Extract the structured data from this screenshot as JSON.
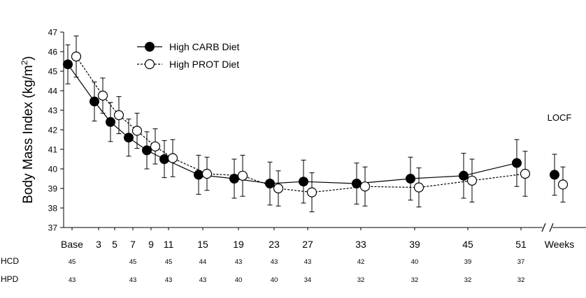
{
  "chart_data": {
    "type": "line",
    "ylabel": "Body Mass Index (kg/m",
    "ylabel_sup": "2",
    "ylabel_close": ")",
    "xlabel": "Weeks",
    "ylim": [
      37,
      47
    ],
    "yticks": [
      37,
      38,
      39,
      40,
      41,
      42,
      43,
      44,
      45,
      46,
      47
    ],
    "x_tick_labels": [
      "Base",
      "3",
      "5",
      "7",
      "9",
      "11",
      "15",
      "19",
      "23",
      "27",
      "33",
      "39",
      "45",
      "51"
    ],
    "x_tick_weeks": [
      0,
      3,
      5,
      7,
      9,
      11,
      15,
      19,
      23,
      27,
      33,
      39,
      45,
      51
    ],
    "legend_position": "top-left",
    "locf_label": "LOCF",
    "series": [
      {
        "name": "High CARB Diet",
        "marker": "filled-circle",
        "line_style": "solid",
        "x": [
          0,
          3,
          5,
          7,
          9,
          11,
          15,
          19,
          23,
          27,
          33,
          39,
          45,
          51
        ],
        "values": [
          45.35,
          43.45,
          42.4,
          41.6,
          40.95,
          40.5,
          39.7,
          39.5,
          39.25,
          39.35,
          39.25,
          39.5,
          39.65,
          40.3
        ],
        "err": [
          1.0,
          1.0,
          1.0,
          0.95,
          0.95,
          0.95,
          1.0,
          1.0,
          1.1,
          1.1,
          1.05,
          1.1,
          1.15,
          1.2
        ],
        "locf_value": 39.7,
        "locf_err": 1.05
      },
      {
        "name": "High PROT Diet",
        "marker": "open-circle",
        "line_style": "dashed",
        "x": [
          0,
          3,
          5,
          7,
          9,
          11,
          15,
          19,
          23,
          27,
          33,
          39,
          45,
          51
        ],
        "values": [
          45.75,
          43.75,
          42.75,
          41.95,
          41.15,
          40.55,
          39.75,
          39.65,
          39.0,
          38.8,
          39.1,
          39.05,
          39.4,
          39.75
        ],
        "err": [
          1.05,
          0.9,
          0.95,
          0.9,
          0.9,
          0.95,
          0.85,
          1.05,
          0.9,
          1.0,
          1.0,
          1.0,
          1.1,
          1.15
        ],
        "locf_value": 39.2,
        "locf_err": 0.9
      }
    ]
  },
  "counts": {
    "rows": [
      {
        "label": "HCD",
        "entries": [
          {
            "week": 0,
            "value": "45"
          },
          {
            "week": 7,
            "value": "45"
          },
          {
            "week": 11,
            "value": "45"
          },
          {
            "week": 15,
            "value": "44"
          },
          {
            "week": 19,
            "value": "43"
          },
          {
            "week": 23,
            "value": "43"
          },
          {
            "week": 27,
            "value": "43"
          },
          {
            "week": 33,
            "value": "42"
          },
          {
            "week": 39,
            "value": "40"
          },
          {
            "week": 45,
            "value": "39"
          },
          {
            "week": 51,
            "value": "37"
          }
        ]
      },
      {
        "label": "HPD",
        "entries": [
          {
            "week": 0,
            "value": "43"
          },
          {
            "week": 7,
            "value": "43"
          },
          {
            "week": 11,
            "value": "43"
          },
          {
            "week": 15,
            "value": "43"
          },
          {
            "week": 19,
            "value": "40"
          },
          {
            "week": 23,
            "value": "40"
          },
          {
            "week": 27,
            "value": "34"
          },
          {
            "week": 33,
            "value": "32"
          },
          {
            "week": 39,
            "value": "32"
          },
          {
            "week": 45,
            "value": "32"
          },
          {
            "week": 51,
            "value": "32"
          }
        ]
      }
    ]
  }
}
